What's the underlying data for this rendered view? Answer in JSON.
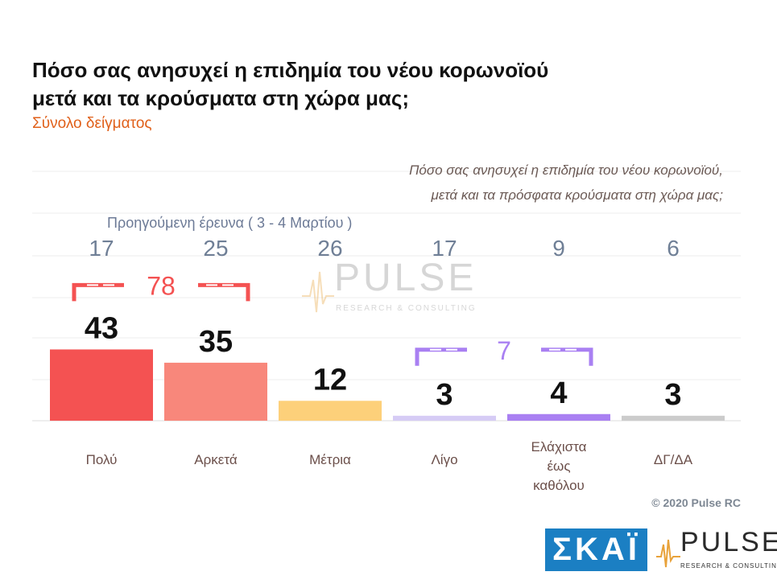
{
  "title_line1": "Πόσο σας ανησυχεί η επιδημία του νέου κορωνοϊού",
  "title_line2": "μετά και τα κρούσματα στη χώρα μας;",
  "subtitle": "Σύνολο δείγματος",
  "question_line1": "Πόσο σας ανησυχεί η επιδημία του νέου κορωνοϊού,",
  "question_line2": "μετά και τα πρόσφατα κρούσματα στη χώρα μας;",
  "copyright": "© 2020 Pulse RC",
  "logos": {
    "skai": "ΣΚΑΪ",
    "pulse": "PULSE",
    "pulse_sub": "RESEARCH & CONSULTING"
  },
  "chart_data": {
    "type": "bar",
    "title": "Πόσο σας ανησυχεί η επιδημία του νέου κορωνοϊού μετά και τα κρούσματα στη χώρα μας;",
    "categories": [
      [
        "Πολύ"
      ],
      [
        "Αρκετά"
      ],
      [
        "Μέτρια"
      ],
      [
        "Λίγο"
      ],
      [
        "Ελάχιστα",
        "έως",
        "καθόλου"
      ],
      [
        "ΔΓ/ΔΑ"
      ]
    ],
    "values": [
      43,
      35,
      12,
      3,
      4,
      3
    ],
    "colors": [
      "#f45252",
      "#f8877b",
      "#fdd07a",
      "#d6ccf5",
      "#a980f2",
      "#cccccc"
    ],
    "previous_survey": {
      "label": "Προηγούμενη έρευνα   ( 3 - 4  Μαρτίου )",
      "values": [
        17,
        25,
        26,
        17,
        9,
        6
      ]
    },
    "groups": [
      {
        "from": 0,
        "to": 1,
        "value": 78,
        "color": "#f45252"
      },
      {
        "from": 3,
        "to": 4,
        "value": 7,
        "color": "#a980f2"
      }
    ],
    "ylim": [
      0,
      100
    ],
    "grid": true,
    "xlabel": "",
    "ylabel": ""
  }
}
